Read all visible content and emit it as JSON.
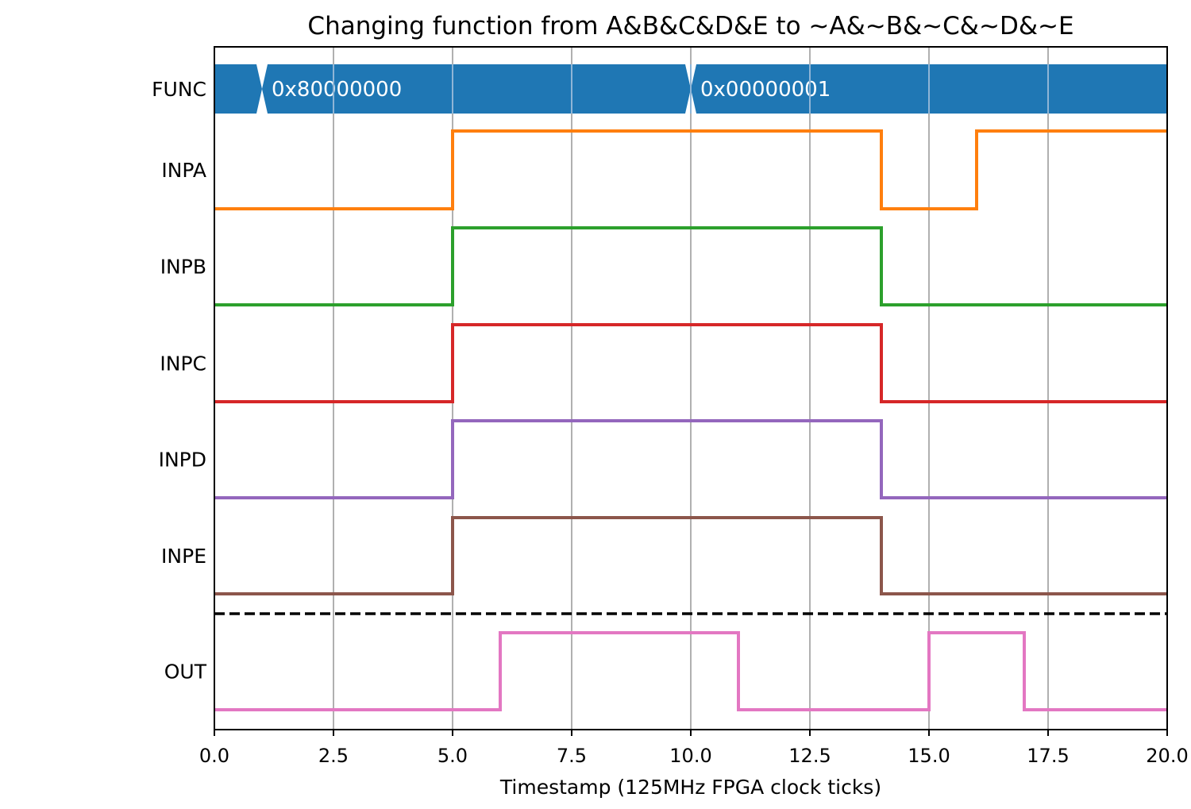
{
  "chart_data": {
    "type": "line",
    "subtype": "timing-diagram",
    "title": "Changing function from A&B&C&D&E to ~A&~B&~C&~D&~E",
    "xlabel": "Timestamp (125MHz FPGA clock ticks)",
    "xlim": [
      0,
      20
    ],
    "xticks": [
      0,
      2.5,
      5,
      7.5,
      10,
      12.5,
      15,
      17.5,
      20
    ],
    "xtick_labels": [
      "0.0",
      "2.5",
      "5.0",
      "7.5",
      "10.0",
      "12.5",
      "15.0",
      "17.5",
      "20.0"
    ],
    "grid": "vertical",
    "bus": {
      "name": "FUNC",
      "color": "#1f77b4",
      "segments": [
        {
          "start": 0,
          "end": 1,
          "label": ""
        },
        {
          "start": 1,
          "end": 10,
          "label": "0x80000000"
        },
        {
          "start": 10,
          "end": 20,
          "label": "0x00000001"
        }
      ]
    },
    "series": [
      {
        "name": "INPA",
        "color": "#ff7f0e",
        "x": [
          0,
          5,
          14,
          16,
          20
        ],
        "values": [
          0,
          1,
          0,
          1,
          1
        ]
      },
      {
        "name": "INPB",
        "color": "#2ca02c",
        "x": [
          0,
          5,
          14,
          20
        ],
        "values": [
          0,
          1,
          0,
          0
        ]
      },
      {
        "name": "INPC",
        "color": "#d62728",
        "x": [
          0,
          5,
          14,
          20
        ],
        "values": [
          0,
          1,
          0,
          0
        ]
      },
      {
        "name": "INPD",
        "color": "#9467bd",
        "x": [
          0,
          5,
          14,
          20
        ],
        "values": [
          0,
          1,
          0,
          0
        ]
      },
      {
        "name": "INPE",
        "color": "#8c564b",
        "x": [
          0,
          5,
          14,
          20
        ],
        "values": [
          0,
          1,
          0,
          0
        ]
      },
      {
        "name": "OUT",
        "color": "#e377c2",
        "x": [
          0,
          6,
          11,
          15,
          17,
          20
        ],
        "values": [
          0,
          1,
          0,
          1,
          0,
          0
        ]
      }
    ],
    "separator": {
      "style": "dashed",
      "color": "#000000",
      "between": [
        "INPE",
        "OUT"
      ]
    }
  }
}
